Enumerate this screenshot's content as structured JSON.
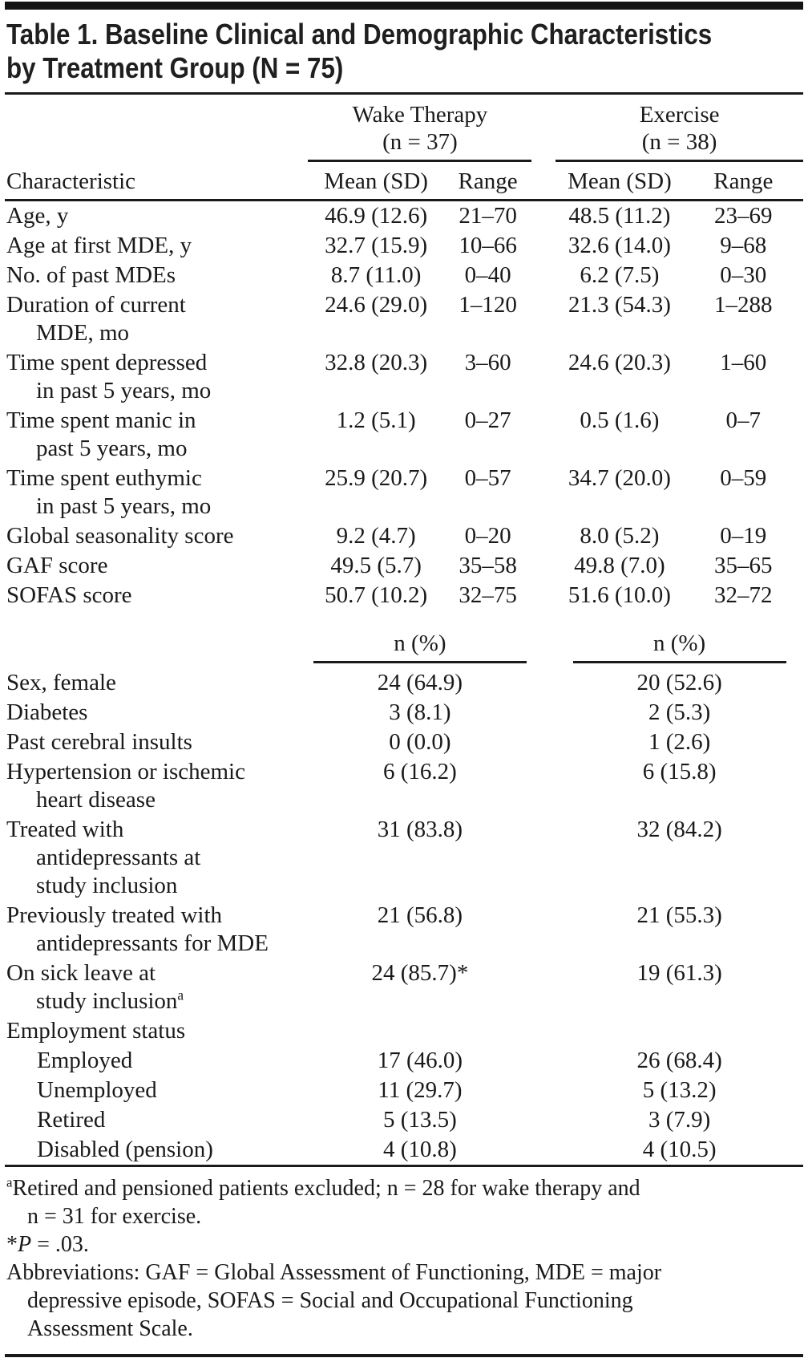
{
  "ink_color": "#1a1a1a",
  "title": {
    "lines": [
      "Table 1. Baseline Clinical and Demographic Characteristics",
      "by Treatment Group (N = 75)"
    ]
  },
  "table": {
    "col_groups": [
      {
        "label": "Wake Therapy",
        "n_label": "(n = 37)"
      },
      {
        "label": "Exercise",
        "n_label": "(n = 38)"
      }
    ],
    "header": {
      "characteristic": "Characteristic",
      "mean_sd": "Mean (SD)",
      "range": "Range",
      "n_pct": "n (%)"
    },
    "mean_rows": [
      {
        "label_lines": [
          "Age, y"
        ],
        "wake_mean": "46.9 (12.6)",
        "wake_range": "21–70",
        "ex_mean": "48.5 (11.2)",
        "ex_range": "23–69"
      },
      {
        "label_lines": [
          "Age at first MDE, y"
        ],
        "wake_mean": "32.7 (15.9)",
        "wake_range": "10–66",
        "ex_mean": "32.6 (14.0)",
        "ex_range": "9–68"
      },
      {
        "label_lines": [
          "No. of past MDEs"
        ],
        "wake_mean": "8.7 (11.0)",
        "wake_range": "0–40",
        "ex_mean": "6.2 (7.5)",
        "ex_range": "0–30"
      },
      {
        "label_lines": [
          "Duration of current",
          "MDE, mo"
        ],
        "wake_mean": "24.6 (29.0)",
        "wake_range": "1–120",
        "ex_mean": "21.3 (54.3)",
        "ex_range": "1–288"
      },
      {
        "label_lines": [
          "Time spent depressed",
          "in past 5 years, mo"
        ],
        "wake_mean": "32.8 (20.3)",
        "wake_range": "3–60",
        "ex_mean": "24.6 (20.3)",
        "ex_range": "1–60"
      },
      {
        "label_lines": [
          "Time spent manic in",
          "past 5 years, mo"
        ],
        "wake_mean": "1.2 (5.1)",
        "wake_range": "0–27",
        "ex_mean": "0.5 (1.6)",
        "ex_range": "0–7"
      },
      {
        "label_lines": [
          "Time spent euthymic",
          "in past 5 years, mo"
        ],
        "wake_mean": "25.9 (20.7)",
        "wake_range": "0–57",
        "ex_mean": "34.7 (20.0)",
        "ex_range": "0–59"
      },
      {
        "label_lines": [
          "Global seasonality score"
        ],
        "wake_mean": "9.2 (4.7)",
        "wake_range": "0–20",
        "ex_mean": "8.0 (5.2)",
        "ex_range": "0–19"
      },
      {
        "label_lines": [
          "GAF score"
        ],
        "wake_mean": "49.5 (5.7)",
        "wake_range": "35–58",
        "ex_mean": "49.8 (7.0)",
        "ex_range": "35–65"
      },
      {
        "label_lines": [
          "SOFAS score"
        ],
        "wake_mean": "50.7 (10.2)",
        "wake_range": "32–75",
        "ex_mean": "51.6 (10.0)",
        "ex_range": "32–72"
      }
    ],
    "count_rows": [
      {
        "label_lines": [
          "Sex, female"
        ],
        "wake": "24 (64.9)",
        "ex": "20 (52.6)"
      },
      {
        "label_lines": [
          "Diabetes"
        ],
        "wake": "3 (8.1)",
        "ex": "2 (5.3)"
      },
      {
        "label_lines": [
          "Past cerebral insults"
        ],
        "wake": "0 (0.0)",
        "ex": "1 (2.6)"
      },
      {
        "label_lines": [
          "Hypertension or ischemic",
          "heart disease"
        ],
        "wake": "6 (16.2)",
        "ex": "6 (15.8)"
      },
      {
        "label_lines": [
          "Treated with",
          "antidepressants at",
          "study inclusion"
        ],
        "wake": "31 (83.8)",
        "ex": "32 (84.2)"
      },
      {
        "label_lines": [
          "Previously treated with",
          "antidepressants for MDE"
        ],
        "wake": "21 (56.8)",
        "ex": "21 (55.3)"
      },
      {
        "label_lines": [
          "On sick leave at",
          "study inclusion"
        ],
        "sup": "a",
        "wake": "24 (85.7)*",
        "ex": "19 (61.3)"
      },
      {
        "label_lines": [
          "Employment status"
        ],
        "wake": "",
        "ex": ""
      },
      {
        "label_lines": [
          "Employed"
        ],
        "indent": true,
        "wake": "17 (46.0)",
        "ex": "26 (68.4)"
      },
      {
        "label_lines": [
          "Unemployed"
        ],
        "indent": true,
        "wake": "11 (29.7)",
        "ex": "5 (13.2)"
      },
      {
        "label_lines": [
          "Retired"
        ],
        "indent": true,
        "wake": "5 (13.5)",
        "ex": "3 (7.9)"
      },
      {
        "label_lines": [
          "Disabled (pension)"
        ],
        "indent": true,
        "wake": "4 (10.8)",
        "ex": "4 (10.5)"
      }
    ]
  },
  "footnotes": {
    "a": {
      "marker": "a",
      "lines": [
        "Retired and pensioned patients excluded; n = 28 for wake therapy and",
        "n = 31 for exercise."
      ]
    },
    "p": {
      "star": "*",
      "p_label": "P",
      "rest": " = .03."
    },
    "abbreviations": {
      "lines": [
        "Abbreviations: GAF = Global Assessment of Functioning, MDE = major",
        "depressive episode, SOFAS = Social and Occupational Functioning",
        "Assessment Scale."
      ]
    }
  }
}
